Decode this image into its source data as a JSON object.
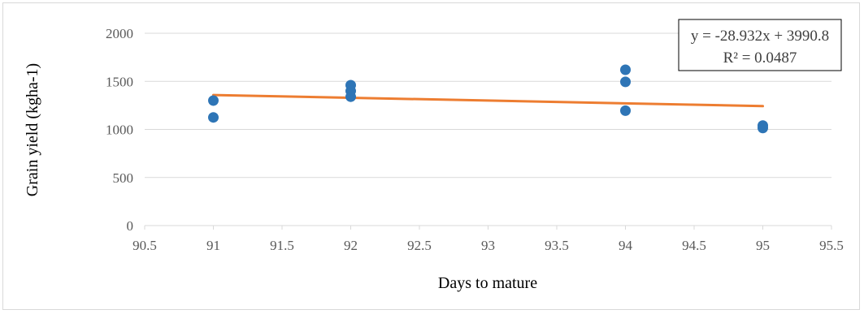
{
  "chart_data": {
    "type": "scatter",
    "title": "",
    "xlabel": "Days to mature",
    "ylabel": "Grain yield (kgha-1)",
    "xlim": [
      90.5,
      95.5
    ],
    "ylim": [
      0,
      2000
    ],
    "x_ticks": [
      90.5,
      91,
      91.5,
      92,
      92.5,
      93,
      93.5,
      94,
      94.5,
      95,
      95.5
    ],
    "x_tick_labels": [
      "90.5",
      "91",
      "91.5",
      "92",
      "92.5",
      "93",
      "93.5",
      "94",
      "94.5",
      "95",
      "95.5"
    ],
    "y_ticks": [
      0,
      500,
      1000,
      1500,
      2000
    ],
    "y_tick_labels": [
      "0",
      "500",
      "1000",
      "1500",
      "2000"
    ],
    "grid": "horizontal",
    "legend": "none",
    "points": [
      {
        "x": 91,
        "y": 1300
      },
      {
        "x": 91,
        "y": 1125
      },
      {
        "x": 92,
        "y": 1460
      },
      {
        "x": 92,
        "y": 1400
      },
      {
        "x": 92,
        "y": 1340
      },
      {
        "x": 94,
        "y": 1620
      },
      {
        "x": 94,
        "y": 1495
      },
      {
        "x": 94,
        "y": 1195
      },
      {
        "x": 95,
        "y": 1040
      },
      {
        "x": 95,
        "y": 1015
      }
    ],
    "trendline": {
      "type": "linear",
      "slope": -28.932,
      "intercept": 3990.8,
      "x_range": [
        91,
        95
      ],
      "equation_label": "y = -28.932x + 3990.8",
      "r2_label": "R² = 0.0487"
    },
    "colors": {
      "points": "#2e75b6",
      "trendline": "#ed7d31",
      "gridline": "#d9d9d9"
    }
  }
}
